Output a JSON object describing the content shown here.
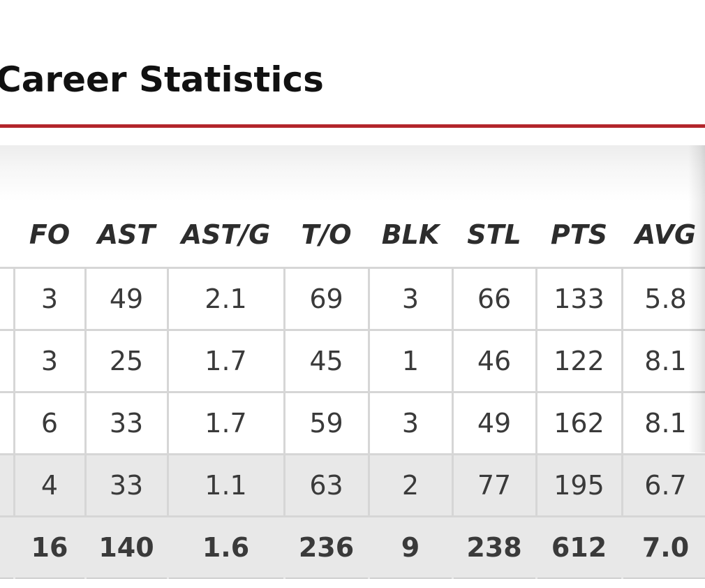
{
  "title": "Career Statistics",
  "columns": [
    "FO",
    "AST",
    "AST/G",
    "T/O",
    "BLK",
    "STL",
    "PTS",
    "AVG"
  ],
  "rows": [
    [
      "3",
      "49",
      "2.1",
      "69",
      "3",
      "66",
      "133",
      "5.8"
    ],
    [
      "3",
      "25",
      "1.7",
      "45",
      "1",
      "46",
      "122",
      "8.1"
    ],
    [
      "6",
      "33",
      "1.7",
      "59",
      "3",
      "49",
      "162",
      "8.1"
    ],
    [
      "4",
      "33",
      "1.1",
      "63",
      "2",
      "77",
      "195",
      "6.7"
    ]
  ],
  "totals": [
    "16",
    "140",
    "1.6",
    "236",
    "9",
    "238",
    "612",
    "7.0"
  ],
  "colors": {
    "accent_rule": "#b3262b",
    "cell_border": "#d6d6d6",
    "alt_row_bg": "#e8e8e8"
  }
}
